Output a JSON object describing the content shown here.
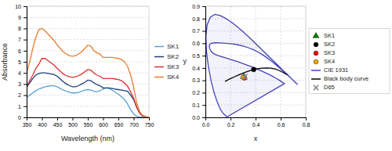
{
  "chart_data": [
    {
      "type": "line",
      "xlabel": "Wavelength (nm)",
      "ylabel": "Absorbance",
      "x": [
        350,
        360,
        370,
        380,
        390,
        400,
        410,
        420,
        430,
        440,
        450,
        460,
        470,
        480,
        490,
        500,
        510,
        520,
        530,
        540,
        550,
        560,
        570,
        580,
        590,
        600,
        610,
        620,
        630,
        640,
        650,
        660,
        670,
        680,
        690,
        700,
        710,
        720,
        730,
        740,
        750
      ],
      "series": [
        {
          "name": "SK1",
          "color": "#5ba3d0",
          "values": [
            1.8,
            2.0,
            2.2,
            2.4,
            2.55,
            2.65,
            2.75,
            2.8,
            2.85,
            2.85,
            2.75,
            2.6,
            2.45,
            2.35,
            2.25,
            2.2,
            2.2,
            2.25,
            2.35,
            2.45,
            2.5,
            2.45,
            2.35,
            2.3,
            2.4,
            2.55,
            2.65,
            2.6,
            2.45,
            2.25,
            2.1,
            1.85,
            1.6,
            1.2,
            0.7,
            0.3,
            0.1,
            0.04,
            0.02,
            0.01,
            0.01
          ]
        },
        {
          "name": "SK2",
          "color": "#1f3f7a",
          "values": [
            2.7,
            3.1,
            3.5,
            3.8,
            3.95,
            4.0,
            4.0,
            3.95,
            3.9,
            3.85,
            3.7,
            3.45,
            3.2,
            3.0,
            2.85,
            2.75,
            2.75,
            2.85,
            3.0,
            3.15,
            3.35,
            3.3,
            3.1,
            2.95,
            2.85,
            2.65,
            2.65,
            2.65,
            2.6,
            2.55,
            2.5,
            2.45,
            2.4,
            2.35,
            2.0,
            1.6,
            0.9,
            0.4,
            0.15,
            0.06,
            0.03
          ]
        },
        {
          "name": "SK3",
          "color": "#d93030",
          "values": [
            2.8,
            3.3,
            3.8,
            4.4,
            4.8,
            5.3,
            5.3,
            5.1,
            4.9,
            4.7,
            4.4,
            4.15,
            3.9,
            3.75,
            3.65,
            3.6,
            3.65,
            3.75,
            3.9,
            4.1,
            4.3,
            4.25,
            4.0,
            3.8,
            3.7,
            3.5,
            3.5,
            3.5,
            3.5,
            3.45,
            3.4,
            3.3,
            3.1,
            2.8,
            2.3,
            1.7,
            0.9,
            0.35,
            0.1,
            0.04,
            0.02
          ]
        },
        {
          "name": "SK4",
          "color": "#e87c30",
          "values": [
            4.0,
            5.0,
            6.2,
            7.2,
            7.9,
            8.0,
            7.8,
            7.5,
            7.2,
            6.9,
            6.5,
            6.2,
            5.9,
            5.7,
            5.55,
            5.5,
            5.55,
            5.7,
            5.9,
            6.2,
            6.5,
            6.4,
            6.0,
            5.8,
            5.7,
            5.4,
            5.4,
            5.4,
            5.4,
            5.35,
            5.3,
            5.2,
            5.0,
            4.6,
            3.8,
            2.7,
            1.3,
            0.5,
            0.15,
            0.05,
            0.02
          ]
        }
      ],
      "xlim": [
        350,
        750
      ],
      "ylim": [
        0,
        10
      ],
      "xticks": [
        350,
        400,
        450,
        500,
        550,
        600,
        650,
        700,
        750
      ],
      "yticks": [
        0,
        1,
        2,
        3,
        4,
        5,
        6,
        7,
        8,
        9,
        10
      ],
      "grid": "y",
      "legend": "right"
    },
    {
      "type": "scatter",
      "xlabel": "x",
      "ylabel": "y",
      "series": [
        {
          "name": "SK1",
          "type": "scatter",
          "marker": "triangle",
          "color": "green",
          "x": [
            0.305
          ],
          "values": [
            0.33
          ]
        },
        {
          "name": "SK2",
          "type": "scatter",
          "marker": "circle",
          "color": "black",
          "x": [
            0.385
          ],
          "values": [
            0.388
          ]
        },
        {
          "name": "SK3",
          "type": "scatter",
          "marker": "circle",
          "color": "red",
          "x": [
            0.31
          ],
          "values": [
            0.32
          ]
        },
        {
          "name": "SK4",
          "type": "scatter",
          "marker": "circle",
          "color": "orange",
          "x": [
            0.302
          ],
          "values": [
            0.326
          ]
        },
        {
          "name": "CIE 1931",
          "type": "line",
          "color": "#4444bb",
          "x": [
            0.1741,
            0.174,
            0.1738,
            0.1736,
            0.1733,
            0.173,
            0.1726,
            0.1721,
            0.1714,
            0.1703,
            0.1689,
            0.1669,
            0.1644,
            0.1611,
            0.1566,
            0.151,
            0.144,
            0.1355,
            0.1241,
            0.1096,
            0.0913,
            0.0687,
            0.0454,
            0.0235,
            0.0082,
            0.0039,
            0.0139,
            0.0389,
            0.0743,
            0.1142,
            0.1547,
            0.1929,
            0.2296,
            0.2658,
            0.3016,
            0.3373,
            0.3731,
            0.4087,
            0.4441,
            0.4788,
            0.5125,
            0.5448,
            0.5752,
            0.6029,
            0.627,
            0.6482,
            0.6658,
            0.6801,
            0.6915,
            0.7006,
            0.7079,
            0.714,
            0.719,
            0.723,
            0.726,
            0.7283,
            0.73,
            0.7311,
            0.732,
            0.7334,
            0.7344,
            0.7347,
            0.7347,
            0.734,
            0.7327,
            0.7301,
            0.726,
            0.72,
            0.7119,
            0.7007,
            0.6858,
            0.667,
            0.645,
            0.62,
            0.5926,
            0.5631,
            0.5314,
            0.4976,
            0.4618,
            0.4237,
            0.3837,
            0.3423,
            0.2999,
            0.2578,
            0.2173,
            0.1799,
            0.1461,
            0.1161,
            0.0913,
            0.0711,
            0.0556,
            0.0446,
            0.0373,
            0.0332,
            0.0316,
            0.032,
            0.0336,
            0.0361,
            0.0393,
            0.0432,
            0.0477,
            0.054,
            0.0628,
            0.0764,
            0.0979,
            0.1281,
            0.1651,
            0.2074,
            0.2536,
            0.301,
            0.3487,
            0.3962,
            0.4425,
            0.4866,
            0.528,
            0.566,
            0.6,
            0.63,
            0.1741
          ],
          "values": [
            0.005,
            0.005,
            0.0049,
            0.0049,
            0.0048,
            0.0048,
            0.0048,
            0.0048,
            0.0051,
            0.0058,
            0.0069,
            0.0086,
            0.0109,
            0.0138,
            0.0177,
            0.0227,
            0.0297,
            0.0399,
            0.0578,
            0.0868,
            0.1327,
            0.2007,
            0.295,
            0.4127,
            0.5384,
            0.6548,
            0.7502,
            0.812,
            0.8338,
            0.8262,
            0.8059,
            0.7816,
            0.7543,
            0.7243,
            0.6923,
            0.6589,
            0.6245,
            0.5896,
            0.5547,
            0.5202,
            0.4866,
            0.4544,
            0.4242,
            0.3965,
            0.3725,
            0.3514,
            0.334,
            0.3197,
            0.3083,
            0.2993,
            0.292,
            0.2859,
            0.2809,
            0.277,
            0.274,
            0.2717,
            0.27,
            0.2689,
            0.268,
            0.2666,
            0.2656,
            0.2653,
            0.2653,
            0.266,
            0.2673,
            0.2699,
            0.274,
            0.28,
            0.2881,
            0.2993,
            0.3137,
            0.331,
            0.3512,
            0.3741,
            0.3989,
            0.4251,
            0.4516,
            0.4778,
            0.503,
            0.5263,
            0.5469,
            0.5641,
            0.5778,
            0.5878,
            0.5945,
            0.5988,
            0.6017,
            0.6035,
            0.6042,
            0.6038,
            0.602,
            0.5985,
            0.5932,
            0.5862,
            0.5786,
            0.5708,
            0.5632,
            0.5558,
            0.5484,
            0.5411,
            0.5338,
            0.5265,
            0.519,
            0.511,
            0.5022,
            0.4923,
            0.4806,
            0.4672,
            0.452,
            0.4354,
            0.4173,
            0.3981,
            0.378,
            0.3574,
            0.3365,
            0.3153,
            0.2941,
            0.2735,
            0.005
          ]
        },
        {
          "name": "Black body curve",
          "type": "line",
          "color": "black",
          "x": [
            0.6527,
            0.6347,
            0.6123,
            0.5857,
            0.555,
            0.5215,
            0.4866,
            0.4512,
            0.4162,
            0.382,
            0.349,
            0.3181,
            0.2896,
            0.2637,
            0.2402,
            0.219,
            0.2037,
            0.1901,
            0.1781,
            0.1681,
            0.1566
          ],
          "values": [
            0.3445,
            0.3551,
            0.3675,
            0.3804,
            0.3916,
            0.3986,
            0.4006,
            0.3985,
            0.3931,
            0.3853,
            0.3759,
            0.3655,
            0.3547,
            0.3436,
            0.3326,
            0.3218,
            0.3165,
            0.3095,
            0.303,
            0.297,
            0.29
          ]
        },
        {
          "name": "D65",
          "type": "scatter",
          "marker": "x",
          "color": "gray",
          "x": [
            0.3127
          ],
          "values": [
            0.329
          ]
        }
      ],
      "xlim": [
        0,
        0.8
      ],
      "ylim": [
        0,
        0.9
      ],
      "xticks": [
        {
          "value": 0,
          "label": "0.0"
        },
        0.2,
        0.4,
        0.6,
        0.8
      ],
      "yticks": [
        {
          "value": 0,
          "label": "0.0"
        },
        0.1,
        0.2,
        0.3,
        0.4,
        0.5,
        0.6,
        0.7,
        0.8,
        0.9
      ],
      "grid": true,
      "legend": "right"
    }
  ]
}
